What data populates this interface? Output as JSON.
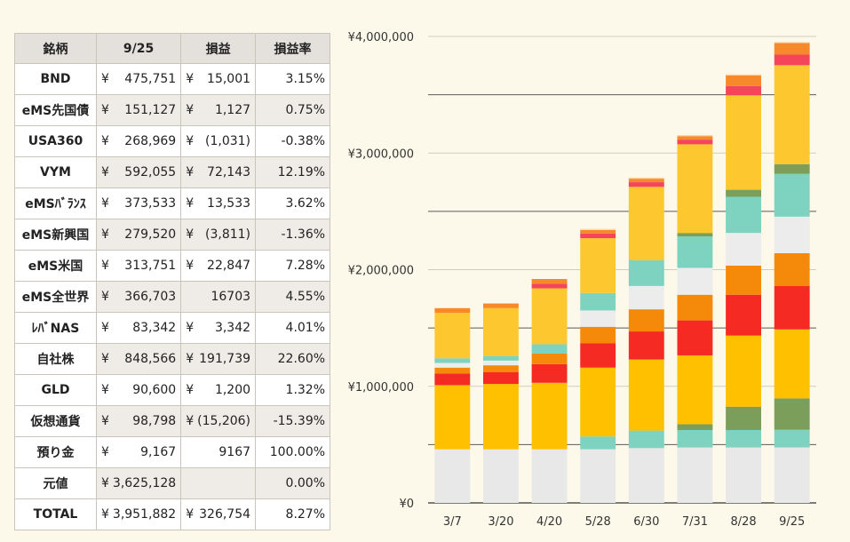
{
  "table": {
    "headers": [
      "銘柄",
      "9/25",
      "損益",
      "損益率"
    ],
    "currency_symbol": "¥",
    "rows": [
      {
        "name": "BND",
        "value": "475,751",
        "pnl": "15,001",
        "rate": "3.15%",
        "pnl_yen": true
      },
      {
        "name": "eMS先国債",
        "value": "151,127",
        "pnl": "1,127",
        "rate": "0.75%",
        "pnl_yen": true
      },
      {
        "name": "USA360",
        "value": "268,969",
        "pnl": "(1,031)",
        "rate": "-0.38%",
        "pnl_yen": true
      },
      {
        "name": "VYM",
        "value": "592,055",
        "pnl": "72,143",
        "rate": "12.19%",
        "pnl_yen": true
      },
      {
        "name": "eMSﾊﾞﾗﾝｽ",
        "value": "373,533",
        "pnl": "13,533",
        "rate": "3.62%",
        "pnl_yen": true
      },
      {
        "name": "eMS新興国",
        "value": "279,520",
        "pnl": "(3,811)",
        "rate": "-1.36%",
        "pnl_yen": true
      },
      {
        "name": "eMS米国",
        "value": "313,751",
        "pnl": "22,847",
        "rate": "7.28%",
        "pnl_yen": true
      },
      {
        "name": "eMS全世界",
        "value": "366,703",
        "pnl": "16703",
        "rate": "4.55%",
        "pnl_yen": false
      },
      {
        "name": "ﾚﾊﾞNAS",
        "value": "83,342",
        "pnl": "3,342",
        "rate": "4.01%",
        "pnl_yen": true
      },
      {
        "name": "自社株",
        "value": "848,566",
        "pnl": "191,739",
        "rate": "22.60%",
        "pnl_yen": true
      },
      {
        "name": "GLD",
        "value": "90,600",
        "pnl": "1,200",
        "rate": "1.32%",
        "pnl_yen": true
      },
      {
        "name": "仮想通貨",
        "value": "98,798",
        "pnl": "(15,206)",
        "rate": "-15.39%",
        "pnl_yen": true
      },
      {
        "name": "預り金",
        "value": "9,167",
        "pnl": "9167",
        "rate": "100.00%",
        "pnl_yen": false
      },
      {
        "name": "元値",
        "value": "3,625,128",
        "pnl": "",
        "rate": "0.00%",
        "pnl_yen": false
      },
      {
        "name": "TOTAL",
        "value": "3,951,882",
        "pnl": "326,754",
        "rate": "8.27%",
        "pnl_yen": true
      }
    ]
  },
  "chart_data": {
    "type": "bar",
    "stacked": true,
    "categories": [
      "3/7",
      "3/20",
      "4/20",
      "5/28",
      "6/30",
      "7/31",
      "8/28",
      "9/25"
    ],
    "ylim": [
      0,
      4000000
    ],
    "yticks": [
      0,
      1000000,
      2000000,
      3000000,
      4000000
    ],
    "ytick_labels": [
      "¥0",
      "¥1,000,000",
      "¥2,000,000",
      "¥3,000,000",
      "¥4,000,000"
    ],
    "grid": true,
    "legend": "none",
    "series": [
      {
        "color": "#e8e8e8",
        "values": [
          460000,
          460000,
          460000,
          460000,
          470000,
          475000,
          475000,
          475751
        ]
      },
      {
        "color": "#7dd3c0",
        "values": [
          0,
          0,
          0,
          110000,
          150000,
          150000,
          150000,
          151127
        ]
      },
      {
        "color": "#7b9e5a",
        "values": [
          0,
          0,
          0,
          0,
          0,
          50000,
          200000,
          268969
        ]
      },
      {
        "color": "#ffc000",
        "values": [
          550000,
          560000,
          570000,
          590000,
          610000,
          590000,
          610000,
          592055
        ]
      },
      {
        "color": "#f52a23",
        "values": [
          100000,
          100000,
          160000,
          210000,
          240000,
          300000,
          350000,
          373533
        ]
      },
      {
        "color": "#f58a0a",
        "values": [
          50000,
          60000,
          90000,
          140000,
          190000,
          220000,
          250000,
          279520
        ]
      },
      {
        "color": "#ececec",
        "values": [
          40000,
          40000,
          0,
          140000,
          200000,
          230000,
          280000,
          313751
        ]
      },
      {
        "color": "#7dd3c0",
        "values": [
          40000,
          40000,
          80000,
          150000,
          220000,
          270000,
          310000,
          366703
        ]
      },
      {
        "color": "#7b9e5a",
        "values": [
          0,
          0,
          0,
          0,
          0,
          30000,
          60000,
          83342
        ]
      },
      {
        "color": "#fdc82f",
        "values": [
          390000,
          410000,
          480000,
          470000,
          630000,
          760000,
          810000,
          848566
        ]
      },
      {
        "color": "#f5455a",
        "values": [
          0,
          0,
          40000,
          40000,
          40000,
          40000,
          80000,
          90600
        ]
      },
      {
        "color": "#f6892a",
        "values": [
          40000,
          40000,
          40000,
          30000,
          30000,
          30000,
          90000,
          98798
        ]
      },
      {
        "color": "#fbd6a0",
        "values": [
          0,
          0,
          0,
          10000,
          10000,
          10000,
          10000,
          9167
        ]
      }
    ]
  }
}
